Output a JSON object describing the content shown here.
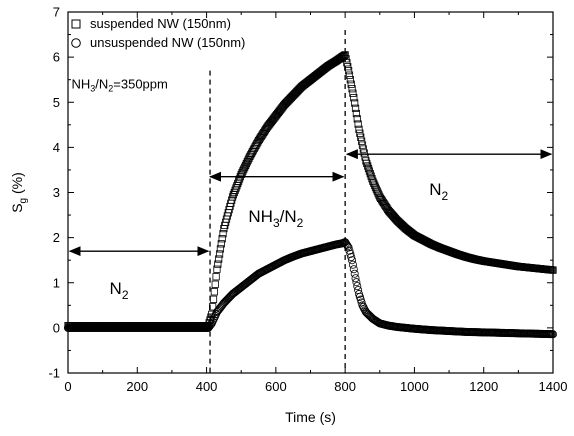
{
  "chart_data": {
    "type": "scatter",
    "xlabel": "Time (s)",
    "ylabel": {
      "main": "S",
      "sub": "g",
      "rest": " (%)"
    },
    "xlim": [
      0,
      1400
    ],
    "ylim": [
      -1,
      7
    ],
    "xticks": [
      0,
      200,
      400,
      600,
      800,
      1000,
      1200,
      1400
    ],
    "yticks": [
      -1,
      0,
      1,
      2,
      3,
      4,
      5,
      6,
      7
    ],
    "grid": false,
    "legend_position": "top-left",
    "series": [
      {
        "name": "suspended NW (150nm)",
        "marker": "square",
        "x": [
          0,
          100,
          200,
          300,
          405,
          415,
          430,
          450,
          475,
          500,
          525,
          550,
          575,
          600,
          625,
          650,
          675,
          700,
          725,
          750,
          775,
          790,
          800,
          810,
          825,
          840,
          860,
          880,
          900,
          925,
          950,
          975,
          1000,
          1025,
          1050,
          1075,
          1100,
          1125,
          1150,
          1175,
          1200,
          1250,
          1300,
          1350,
          1400
        ],
        "y": [
          0.05,
          0.05,
          0.05,
          0.05,
          0.05,
          0.3,
          1.3,
          2.2,
          2.9,
          3.4,
          3.8,
          4.15,
          4.45,
          4.7,
          4.95,
          5.15,
          5.35,
          5.5,
          5.65,
          5.8,
          5.92,
          6.0,
          6.05,
          5.7,
          5.1,
          4.4,
          3.7,
          3.25,
          2.9,
          2.6,
          2.38,
          2.2,
          2.05,
          1.95,
          1.85,
          1.77,
          1.7,
          1.63,
          1.57,
          1.52,
          1.48,
          1.42,
          1.36,
          1.32,
          1.28
        ]
      },
      {
        "name": "unsuspended NW (150nm)",
        "marker": "circle",
        "x": [
          0,
          100,
          200,
          300,
          405,
          415,
          430,
          450,
          475,
          500,
          525,
          550,
          575,
          600,
          625,
          650,
          675,
          700,
          725,
          750,
          775,
          790,
          800,
          810,
          820,
          830,
          840,
          850,
          860,
          880,
          900,
          925,
          950,
          975,
          1000,
          1050,
          1100,
          1150,
          1200,
          1250,
          1300,
          1350,
          1400
        ],
        "y": [
          0.0,
          0.0,
          0.0,
          0.0,
          0.0,
          0.1,
          0.35,
          0.55,
          0.75,
          0.9,
          1.05,
          1.2,
          1.3,
          1.4,
          1.5,
          1.58,
          1.65,
          1.7,
          1.75,
          1.8,
          1.85,
          1.87,
          1.9,
          1.78,
          1.5,
          1.1,
          0.75,
          0.5,
          0.35,
          0.2,
          0.1,
          0.05,
          0.02,
          0.0,
          -0.02,
          -0.05,
          -0.07,
          -0.09,
          -0.1,
          -0.11,
          -0.12,
          -0.13,
          -0.14
        ]
      }
    ],
    "annotations": {
      "concentration": {
        "gas_main": "NH",
        "gas_sub1": "3",
        "slash": "/N",
        "gas_sub2": "2",
        "rest": "=350ppm",
        "x": 10,
        "y": 5.3
      },
      "n2_left": {
        "main": "N",
        "sub": "2",
        "x": 205,
        "y": 0.75,
        "arrow_from": 5,
        "arrow_to": 405,
        "arrow_y": 1.7
      },
      "nh3_mid": {
        "main1": "NH",
        "sub1": "3",
        "main2": "/N",
        "sub2": "2",
        "x": 600,
        "y": 2.35,
        "arrow_from": 410,
        "arrow_to": 795,
        "arrow_y": 3.35
      },
      "n2_right": {
        "main": "N",
        "sub": "2",
        "x": 1070,
        "y": 2.95,
        "arrow_from": 805,
        "arrow_to": 1395,
        "arrow_y": 3.85
      },
      "vlines": [
        410,
        800
      ]
    }
  }
}
